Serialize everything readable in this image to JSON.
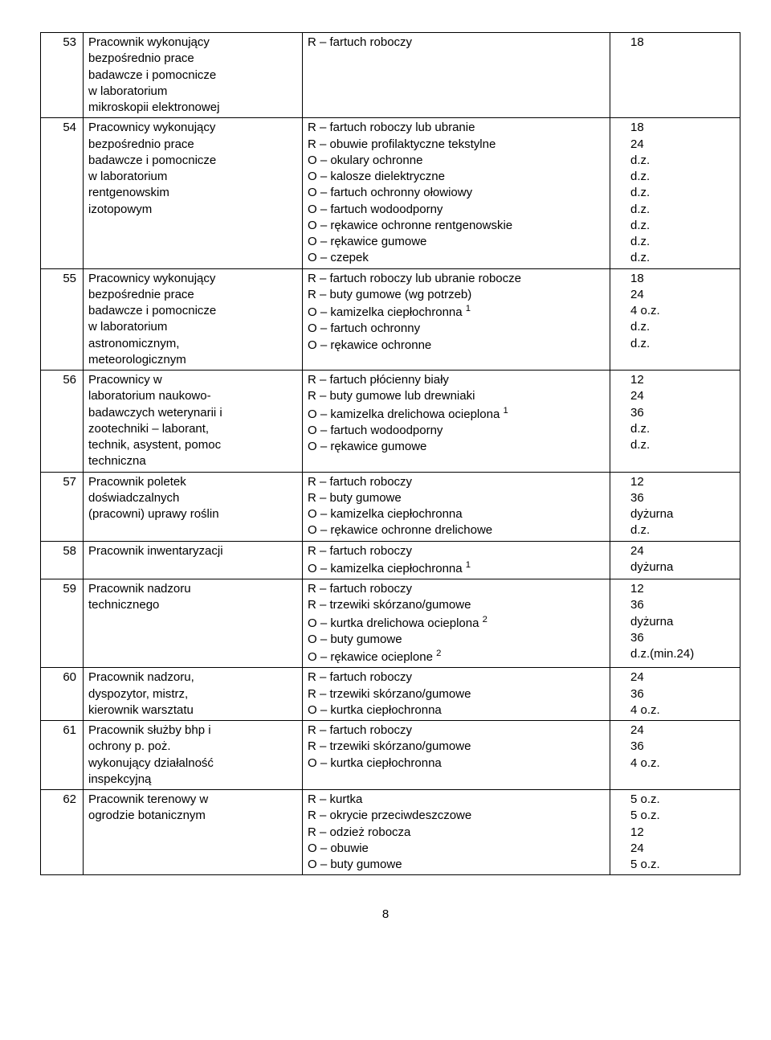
{
  "page_number": "8",
  "rows": [
    {
      "n": "53",
      "job": [
        "Pracownik wykonujący",
        "bezpośrednio prace",
        "badawcze i pomocnicze",
        "w laboratorium",
        "mikroskopii elektronowej"
      ],
      "items": [
        "R – fartuch roboczy"
      ],
      "vals": [
        "18"
      ]
    },
    {
      "n": "54",
      "job": [
        "Pracownicy wykonujący",
        "bezpośrednio prace",
        "badawcze i pomocnicze",
        "w laboratorium",
        "rentgenowskim",
        "izotopowym"
      ],
      "items": [
        "R – fartuch roboczy lub ubranie",
        "R – obuwie profilaktyczne tekstylne",
        "O – okulary ochronne",
        "O – kalosze dielektryczne",
        "O – fartuch ochronny ołowiowy",
        "O – fartuch wodoodporny",
        "O – rękawice ochronne rentgenowskie",
        "O – rękawice gumowe",
        "O – czepek"
      ],
      "vals": [
        "18",
        "24",
        "d.z.",
        "d.z.",
        "d.z.",
        "d.z.",
        "d.z.",
        "d.z.",
        "d.z."
      ]
    },
    {
      "n": "55",
      "job": [
        "Pracownicy wykonujący",
        "bezpośrednie prace",
        "badawcze i pomocnicze",
        "w laboratorium",
        "astronomicznym,",
        "meteorologicznym"
      ],
      "items": [
        "R – fartuch roboczy lub ubranie robocze",
        "R – buty gumowe (wg potrzeb)",
        "O – kamizelka ciepłochronna  <span class=\"sup\">1</span>",
        "O – fartuch ochronny",
        "O – rękawice ochronne"
      ],
      "vals": [
        "18",
        "24",
        "4 o.z.",
        "d.z.",
        "d.z."
      ]
    },
    {
      "n": "56",
      "job": [
        "Pracownicy w",
        "laboratorium naukowo-",
        "badawczych weterynarii i",
        "zootechniki – laborant,",
        "technik, asystent, pomoc",
        "techniczna"
      ],
      "items": [
        "R – fartuch płócienny biały",
        "R – buty gumowe lub drewniaki",
        "O – kamizelka drelichowa ocieplona  <span class=\"sup\">1</span>",
        "O – fartuch wodoodporny",
        "O – rękawice gumowe"
      ],
      "vals": [
        "12",
        "24",
        "36",
        "d.z.",
        "d.z."
      ]
    },
    {
      "n": "57",
      "job": [
        "Pracownik poletek",
        "doświadczalnych",
        "(pracowni) uprawy roślin"
      ],
      "items": [
        "R – fartuch roboczy",
        "R – buty gumowe",
        "O – kamizelka ciepłochronna",
        "O – rękawice ochronne drelichowe"
      ],
      "vals": [
        "12",
        "36",
        "dyżurna",
        "d.z."
      ]
    },
    {
      "n": "58",
      "job": [
        "Pracownik inwentaryzacji"
      ],
      "items": [
        "R – fartuch roboczy",
        "O – kamizelka ciepłochronna  <span class=\"sup\">1</span>"
      ],
      "vals": [
        "24",
        "dyżurna"
      ]
    },
    {
      "n": "59",
      "job": [
        "Pracownik nadzoru",
        "technicznego"
      ],
      "items": [
        "R – fartuch roboczy",
        "R – trzewiki skórzano/gumowe",
        "O – kurtka drelichowa ocieplona  <span class=\"sup\">2</span>",
        "O – buty gumowe",
        "O – rękawice ocieplone  <span class=\"sup\">2</span>"
      ],
      "vals": [
        "12",
        "36",
        "dyżurna",
        "36",
        "d.z.(min.24)"
      ]
    },
    {
      "n": "60",
      "job": [
        "Pracownik nadzoru,",
        "dyspozytor, mistrz,",
        "kierownik warsztatu"
      ],
      "items": [
        "R – fartuch roboczy",
        "R – trzewiki skórzano/gumowe",
        "O – kurtka ciepłochronna"
      ],
      "vals": [
        "24",
        "36",
        "4 o.z."
      ]
    },
    {
      "n": "61",
      "job": [
        "Pracownik służby bhp  i",
        "ochrony p. poż.",
        "wykonujący działalność",
        "inspekcyjną"
      ],
      "items": [
        "R – fartuch roboczy",
        "R – trzewiki skórzano/gumowe",
        "O – kurtka ciepłochronna"
      ],
      "vals": [
        "24",
        "36",
        "4   o.z."
      ]
    },
    {
      "n": "62",
      "job": [
        "Pracownik terenowy w",
        "ogrodzie botanicznym"
      ],
      "items": [
        "R – kurtka",
        "R – okrycie przeciwdeszczowe",
        "R – odzież robocza",
        "O – obuwie",
        "O – buty gumowe"
      ],
      "vals": [
        "5 o.z.",
        "5 o.z.",
        "12",
        "24",
        "5   o.z."
      ]
    }
  ]
}
